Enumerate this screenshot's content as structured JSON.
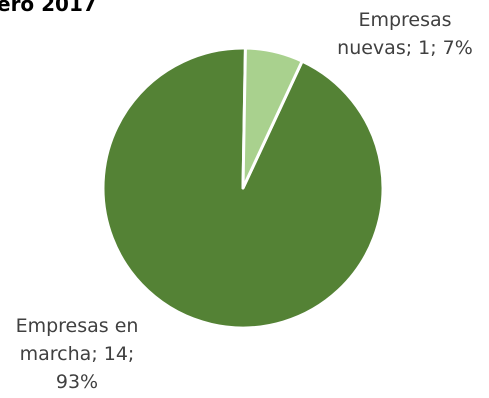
{
  "chart_data": {
    "type": "pie",
    "title": "ero 2017",
    "slices": [
      {
        "name": "Empresas en marcha",
        "value": 14,
        "percent": 93,
        "color": "#548235",
        "label_lines": [
          "Empresas en",
          "marcha; 14;",
          "93%"
        ]
      },
      {
        "name": "Empresas nuevas",
        "value": 1,
        "percent": 7,
        "color": "#a9d18e",
        "label_lines": [
          "Empresas",
          "nuevas; 1; 7%"
        ]
      }
    ],
    "slice_border_color": "#ffffff"
  }
}
